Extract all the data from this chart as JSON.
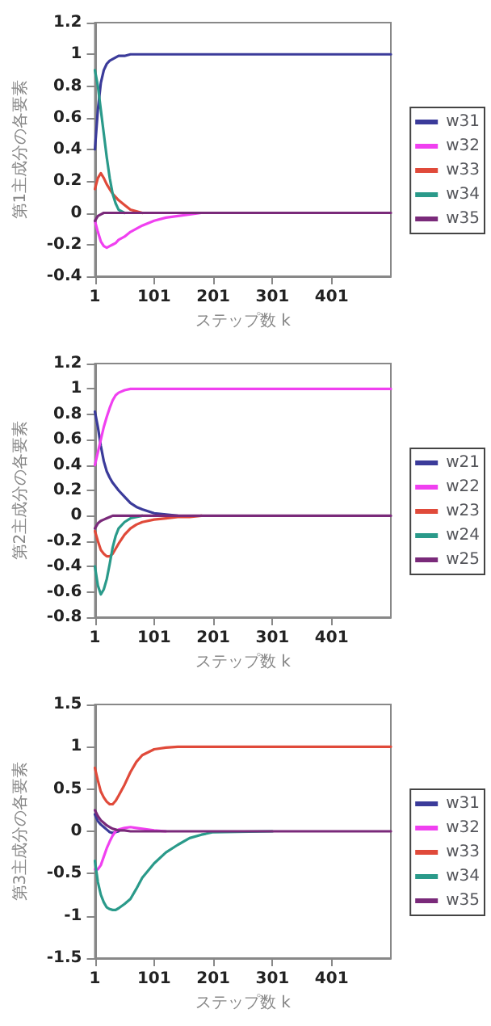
{
  "chart_data": [
    {
      "type": "line",
      "ylabel": "第1主成分の各要素",
      "xlabel": "ステップ数 k",
      "x": [
        1,
        6,
        11,
        16,
        21,
        26,
        31,
        36,
        41,
        51,
        61,
        71,
        81,
        101,
        121,
        141,
        161,
        181,
        201,
        301,
        401,
        501
      ],
      "xlim": [
        1,
        501
      ],
      "xticks": [
        1,
        101,
        201,
        301,
        401
      ],
      "ylim": [
        -0.4,
        1.2
      ],
      "yticks": [
        -0.4,
        -0.2,
        0,
        0.2,
        0.4,
        0.6,
        0.8,
        1,
        1.2
      ],
      "grid": false,
      "legend": "right",
      "marker": "none",
      "line_style": "solid",
      "series": [
        {
          "name": "w31",
          "color": "#3b3b9a",
          "values": [
            0.4,
            0.65,
            0.82,
            0.9,
            0.94,
            0.96,
            0.97,
            0.98,
            0.99,
            0.99,
            1,
            1,
            1,
            1,
            1,
            1,
            1,
            1,
            1,
            1,
            1,
            1
          ]
        },
        {
          "name": "w32",
          "color": "#f040f0",
          "values": [
            -0.05,
            -0.12,
            -0.18,
            -0.21,
            -0.22,
            -0.21,
            -0.2,
            -0.19,
            -0.17,
            -0.15,
            -0.12,
            -0.1,
            -0.08,
            -0.05,
            -0.03,
            -0.02,
            -0.01,
            0,
            null,
            null,
            null,
            null
          ]
        },
        {
          "name": "w33",
          "color": "#e04a3a",
          "values": [
            0.15,
            0.22,
            0.25,
            0.22,
            0.18,
            0.15,
            0.12,
            0.1,
            0.08,
            0.05,
            0.02,
            0.01,
            0,
            null,
            null,
            null,
            null,
            null,
            null,
            null,
            null,
            null
          ]
        },
        {
          "name": "w34",
          "color": "#2a9a8a",
          "values": [
            0.9,
            0.8,
            0.65,
            0.5,
            0.35,
            0.22,
            0.12,
            0.06,
            0.02,
            0,
            null,
            null,
            null,
            null,
            null,
            null,
            null,
            null,
            null,
            null,
            null,
            null
          ]
        },
        {
          "name": "w35",
          "color": "#7a2a7a",
          "values": [
            -0.05,
            -0.02,
            -0.01,
            0,
            0,
            0,
            0,
            0,
            0,
            0,
            0,
            0,
            0,
            0,
            0,
            0,
            0,
            0,
            0,
            0,
            0,
            0
          ]
        }
      ]
    },
    {
      "type": "line",
      "ylabel": "第2主成分の各要素",
      "xlabel": "ステップ数 k",
      "x": [
        1,
        6,
        11,
        16,
        21,
        26,
        31,
        36,
        41,
        51,
        61,
        71,
        81,
        101,
        121,
        141,
        161,
        181,
        201,
        301,
        401,
        501
      ],
      "xlim": [
        1,
        501
      ],
      "xticks": [
        1,
        101,
        201,
        301,
        401
      ],
      "ylim": [
        -0.8,
        1.2
      ],
      "yticks": [
        -0.8,
        -0.6,
        -0.4,
        -0.2,
        0,
        0.2,
        0.4,
        0.6,
        0.8,
        1,
        1.2
      ],
      "grid": false,
      "legend": "right",
      "marker": "none",
      "line_style": "solid",
      "series": [
        {
          "name": "w21",
          "color": "#3b3b9a",
          "values": [
            0.82,
            0.7,
            0.55,
            0.43,
            0.35,
            0.3,
            0.26,
            0.23,
            0.2,
            0.15,
            0.1,
            0.07,
            0.05,
            0.02,
            0.01,
            0,
            null,
            null,
            null,
            null,
            null,
            null
          ]
        },
        {
          "name": "w22",
          "color": "#f040f0",
          "values": [
            0.4,
            0.5,
            0.6,
            0.7,
            0.78,
            0.85,
            0.91,
            0.95,
            0.97,
            0.99,
            1,
            1,
            1,
            1,
            1,
            1,
            1,
            1,
            1,
            1,
            1,
            1
          ]
        },
        {
          "name": "w23",
          "color": "#e04a3a",
          "values": [
            -0.12,
            -0.2,
            -0.27,
            -0.3,
            -0.32,
            -0.32,
            -0.3,
            -0.26,
            -0.22,
            -0.15,
            -0.1,
            -0.07,
            -0.05,
            -0.03,
            -0.02,
            -0.01,
            -0.01,
            0,
            null,
            null,
            null,
            null
          ]
        },
        {
          "name": "w24",
          "color": "#2a9a8a",
          "values": [
            -0.4,
            -0.55,
            -0.62,
            -0.58,
            -0.5,
            -0.38,
            -0.25,
            -0.16,
            -0.1,
            -0.05,
            -0.02,
            -0.01,
            0,
            null,
            null,
            null,
            null,
            null,
            null,
            null,
            null,
            null
          ]
        },
        {
          "name": "w25",
          "color": "#7a2a7a",
          "values": [
            -0.1,
            -0.06,
            -0.04,
            -0.03,
            -0.02,
            -0.01,
            0,
            0,
            0,
            0,
            0,
            0,
            0,
            0,
            0,
            0,
            0,
            0,
            0,
            0,
            0,
            0
          ]
        }
      ]
    },
    {
      "type": "line",
      "ylabel": "第3主成分の各要素",
      "xlabel": "ステップ数 k",
      "x": [
        1,
        6,
        11,
        16,
        21,
        26,
        31,
        36,
        41,
        51,
        61,
        71,
        81,
        101,
        121,
        141,
        161,
        181,
        201,
        301,
        401,
        501
      ],
      "xlim": [
        1,
        501
      ],
      "xticks": [
        1,
        101,
        201,
        301,
        401
      ],
      "ylim": [
        -1.5,
        1.5
      ],
      "yticks": [
        -1.5,
        -1,
        -0.5,
        0,
        0.5,
        1,
        1.5
      ],
      "grid": false,
      "legend": "right",
      "marker": "none",
      "line_style": "solid",
      "series": [
        {
          "name": "w31",
          "color": "#3b3b9a",
          "values": [
            0.2,
            0.12,
            0.08,
            0.05,
            0.02,
            -0.01,
            -0.02,
            -0.01,
            0,
            null,
            null,
            null,
            null,
            null,
            null,
            null,
            null,
            null,
            null,
            null,
            null,
            null
          ]
        },
        {
          "name": "w32",
          "color": "#f040f0",
          "values": [
            -0.45,
            -0.45,
            -0.4,
            -0.3,
            -0.2,
            -0.12,
            -0.05,
            0,
            0.02,
            0.04,
            0.05,
            0.04,
            0.03,
            0.01,
            0,
            null,
            null,
            null,
            null,
            null,
            null,
            null
          ]
        },
        {
          "name": "w33",
          "color": "#e04a3a",
          "values": [
            0.75,
            0.6,
            0.47,
            0.4,
            0.35,
            0.32,
            0.32,
            0.36,
            0.42,
            0.55,
            0.7,
            0.82,
            0.9,
            0.97,
            0.99,
            1,
            1,
            1,
            1,
            1,
            1,
            1
          ]
        },
        {
          "name": "w34",
          "color": "#2a9a8a",
          "values": [
            -0.35,
            -0.6,
            -0.75,
            -0.84,
            -0.9,
            -0.92,
            -0.93,
            -0.93,
            -0.91,
            -0.86,
            -0.8,
            -0.68,
            -0.55,
            -0.38,
            -0.25,
            -0.16,
            -0.08,
            -0.04,
            -0.01,
            0,
            null,
            null
          ]
        },
        {
          "name": "w35",
          "color": "#7a2a7a",
          "values": [
            0.25,
            0.18,
            0.13,
            0.1,
            0.07,
            0.05,
            0.03,
            0.02,
            0.01,
            0.01,
            0,
            0,
            0,
            0,
            0,
            0,
            0,
            0,
            0,
            0,
            0,
            0
          ]
        }
      ]
    }
  ]
}
